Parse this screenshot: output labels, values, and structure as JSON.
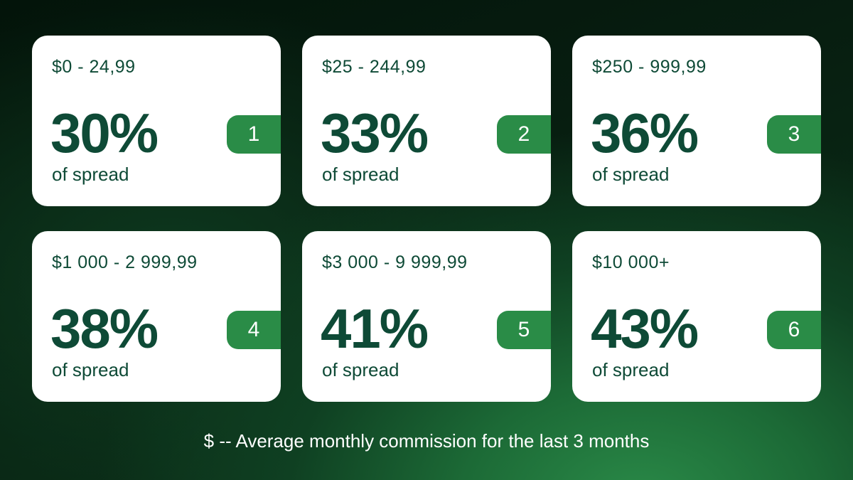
{
  "tiers": [
    {
      "range": "$0 - 24,99",
      "percent": "30%",
      "subtitle": "of spread",
      "number": "1"
    },
    {
      "range": "$25 - 244,99",
      "percent": "33%",
      "subtitle": "of spread",
      "number": "2"
    },
    {
      "range": "$250 - 999,99",
      "percent": "36%",
      "subtitle": "of spread",
      "number": "3"
    },
    {
      "range": "$1 000 - 2 999,99",
      "percent": "38%",
      "subtitle": "of spread",
      "number": "4"
    },
    {
      "range": "$3 000 - 9 999,99",
      "percent": "41%",
      "subtitle": "of spread",
      "number": "5"
    },
    {
      "range": "$10 000+",
      "percent": "43%",
      "subtitle": "of spread",
      "number": "6"
    }
  ],
  "footer_note": "$ -- Average monthly commission for the last 3 months",
  "colors": {
    "text_dark_green": "#0e4a36",
    "badge_green": "#2a8c47",
    "card_bg": "#ffffff"
  }
}
